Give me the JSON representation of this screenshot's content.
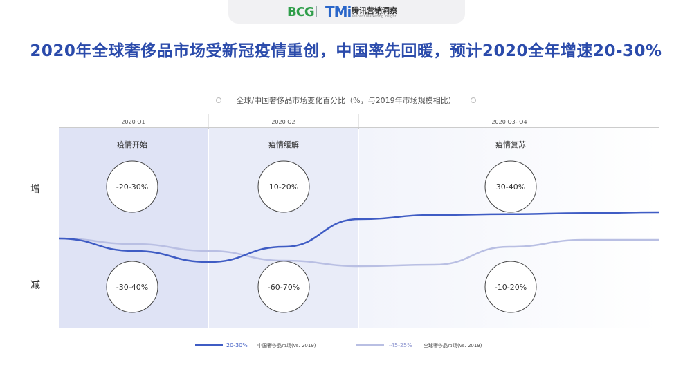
{
  "header": {
    "logo_bcg": "BCG",
    "logo_tmi": "TMi",
    "logo_tmi_cn": "腾讯营销洞察",
    "logo_tmi_en": "Tencent Marketing Insight"
  },
  "title": "2020年全球奢侈品市场受新冠疫情重创，中国率先回暖，预计2020全年增速20-30%",
  "subtitle": "全球/中国奢侈品市场变化百分比（%，与2019年市场规模相比）",
  "side_labels": {
    "up": "增",
    "down": "减"
  },
  "chart_data": {
    "type": "line",
    "title": "全球/中国奢侈品市场变化百分比（%，与2019年市场规模相比）",
    "periods": [
      {
        "label": "2020 Q1",
        "phase": "疫情开始",
        "china": "-20-30%",
        "global": "-30-40%"
      },
      {
        "label": "2020 Q2",
        "phase": "疫情缓解",
        "china": "10-20%",
        "global": "-60-70%"
      },
      {
        "label": "2020 Q3- Q4",
        "phase": "疫情复苏",
        "china": "30-40%",
        "global": "-10-20%"
      }
    ],
    "series": [
      {
        "name": "中国奢侈品市场(vs. 2019)",
        "full_year": "20-30%",
        "color": "#3f5cc4",
        "trend": [
          0,
          -0.45,
          -0.85,
          -0.3,
          0.7,
          0.85,
          0.88,
          0.92,
          0.95
        ]
      },
      {
        "name": "全球奢侈品市场(vs. 2019)",
        "full_year": "-45-25%",
        "color": "#b9bfe3",
        "trend": [
          0,
          -0.2,
          -0.45,
          -0.8,
          -1.0,
          -0.95,
          -0.3,
          -0.05,
          -0.05
        ]
      }
    ],
    "yaxis": {
      "up": "增",
      "down": "减"
    },
    "grid": false,
    "legend": "bottom"
  }
}
